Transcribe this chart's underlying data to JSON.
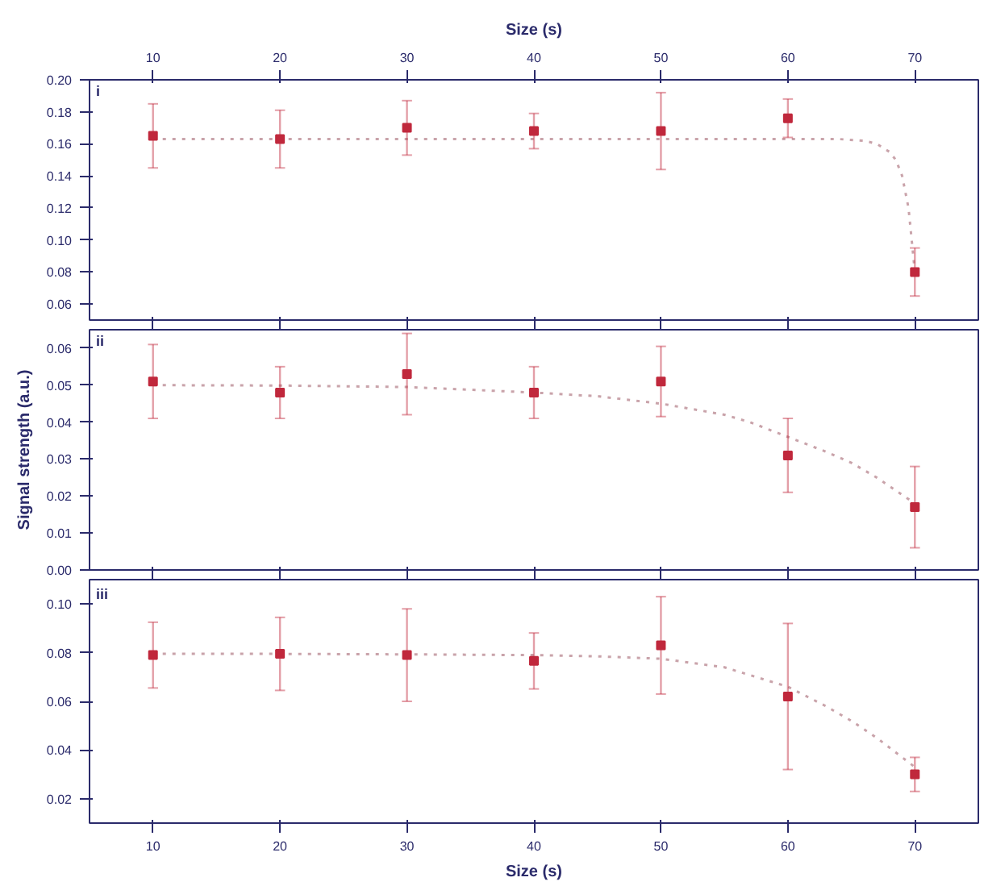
{
  "chart_data": [
    {
      "type": "scatter",
      "x2label": "Size (s)",
      "x2lim": [
        5,
        75
      ],
      "x2ticks": [
        10,
        20,
        30,
        40,
        50,
        60,
        70
      ],
      "xlim": [
        5,
        75
      ],
      "xticks": [
        10,
        20,
        30,
        40,
        50,
        60,
        70
      ],
      "ylim": [
        0.05,
        0.2
      ],
      "yticks": [
        0.06,
        0.08,
        {
          "value": 0.1,
          "label": "0.10"
        },
        0.12,
        0.14,
        0.16,
        0.18,
        {
          "value": 0.2,
          "label": "0.20"
        }
      ],
      "tick_labels": "y",
      "grid": false,
      "annotations": [
        "i"
      ],
      "series": [
        {
          "type": "line",
          "color": "#c9a3aa",
          "line_style": "dotted",
          "marker": "none",
          "x": [
            10,
            20,
            30,
            40,
            50,
            60,
            64,
            66,
            67,
            68,
            68.5,
            69,
            69.5,
            70
          ],
          "values": [
            0.163,
            0.163,
            0.163,
            0.163,
            0.163,
            0.163,
            0.163,
            0.162,
            0.16,
            0.155,
            0.15,
            0.14,
            0.12,
            0.08
          ]
        },
        {
          "color": "#c0283c",
          "marker": "square",
          "x": [
            10,
            20,
            30,
            40,
            50,
            60,
            70
          ],
          "values": [
            0.165,
            0.163,
            0.17,
            0.168,
            0.168,
            0.176,
            0.08
          ],
          "errors": [
            0.02,
            0.018,
            0.017,
            0.011,
            0.024,
            0.012,
            0.015
          ]
        }
      ]
    },
    {
      "type": "scatter",
      "xlim": [
        5,
        75
      ],
      "xticks": [
        10,
        20,
        30,
        40,
        50,
        60,
        70
      ],
      "ylim": [
        0.0,
        0.065
      ],
      "yticks": [
        {
          "value": 0,
          "label": "0.00"
        },
        0.01,
        0.02,
        0.03,
        0.04,
        0.05,
        0.06
      ],
      "tick_labels": "y",
      "grid": false,
      "ylabel": "Signal strength (a.u.)",
      "annotations": [
        "ii"
      ],
      "series": [
        {
          "type": "line",
          "color": "#c9a3aa",
          "line_style": "dotted",
          "marker": "none",
          "x": [
            10,
            20,
            30,
            40,
            45,
            50,
            55,
            57,
            60,
            63,
            65,
            67,
            70
          ],
          "values": [
            0.05,
            0.0499,
            0.0495,
            0.048,
            0.047,
            0.045,
            0.042,
            0.04,
            0.036,
            0.032,
            0.029,
            0.025,
            0.018
          ]
        },
        {
          "color": "#c0283c",
          "marker": "square",
          "x": [
            10,
            20,
            30,
            40,
            50,
            60,
            70
          ],
          "values": [
            0.051,
            0.048,
            0.053,
            0.048,
            0.051,
            0.031,
            0.017
          ],
          "errors": [
            0.01,
            0.007,
            0.011,
            0.007,
            0.0095,
            0.01,
            0.011
          ]
        }
      ]
    },
    {
      "type": "scatter",
      "xlabel": "Size (s)",
      "xlim": [
        5,
        75
      ],
      "xticks": [
        10,
        20,
        30,
        40,
        50,
        60,
        70
      ],
      "ylim": [
        0.01,
        0.11
      ],
      "yticks": [
        0.02,
        0.04,
        0.06,
        0.08,
        {
          "value": 0.1,
          "label": "0.10"
        }
      ],
      "grid": false,
      "annotations": [
        "iii"
      ],
      "series": [
        {
          "type": "line",
          "color": "#c9a3aa",
          "line_style": "dotted",
          "marker": "none",
          "x": [
            10,
            20,
            30,
            40,
            45,
            50,
            55,
            60,
            63,
            65,
            67,
            70
          ],
          "values": [
            0.0795,
            0.0795,
            0.0793,
            0.079,
            0.0785,
            0.0775,
            0.074,
            0.066,
            0.058,
            0.052,
            0.045,
            0.033
          ]
        },
        {
          "color": "#c0283c",
          "marker": "square",
          "x": [
            10,
            20,
            30,
            40,
            50,
            60,
            70
          ],
          "values": [
            0.079,
            0.0795,
            0.079,
            0.0766,
            0.083,
            0.062,
            0.03
          ],
          "errors": [
            0.0135,
            0.015,
            0.019,
            0.0115,
            0.02,
            0.03,
            0.007
          ]
        }
      ]
    }
  ]
}
